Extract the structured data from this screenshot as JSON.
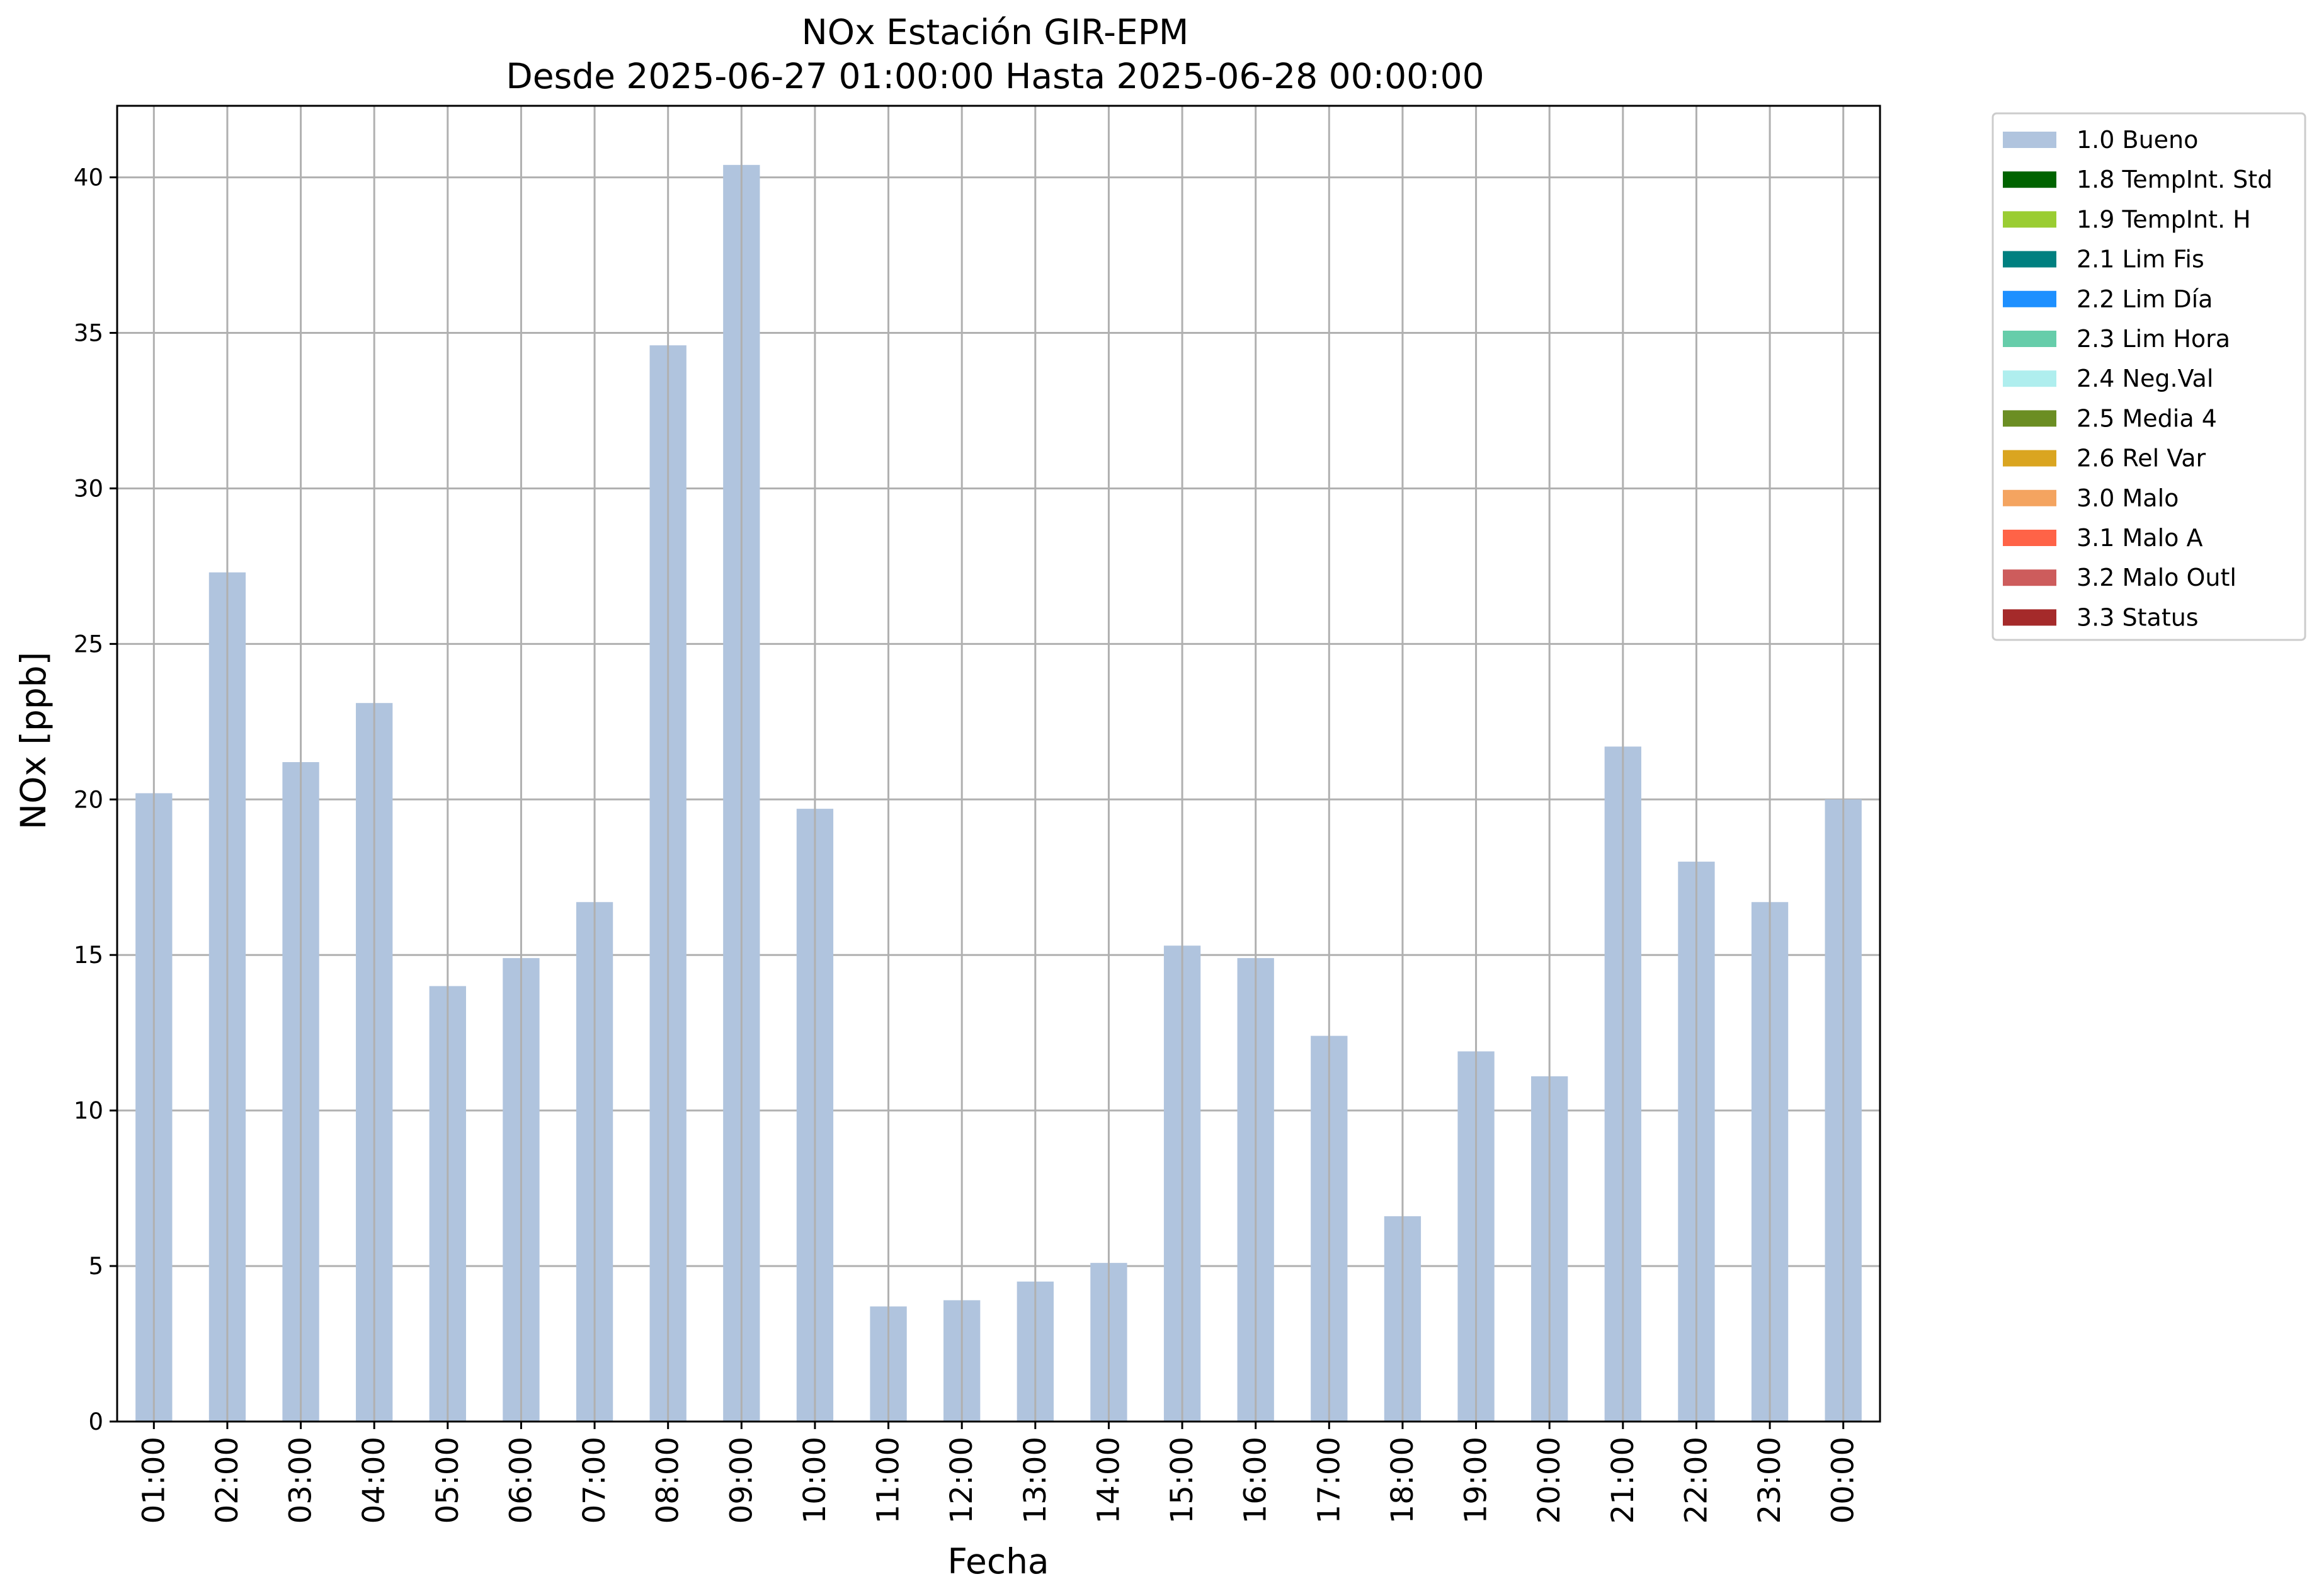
{
  "chart_data": {
    "type": "bar",
    "title": "NOx Estación GIR-EPM",
    "subtitle": "Desde 2025-06-27 01:00:00 Hasta 2025-06-28 00:00:00",
    "xlabel": "Fecha",
    "ylabel": "NOx [ppb]",
    "ylim": [
      0,
      42.3
    ],
    "yticks": [
      0,
      5,
      10,
      15,
      20,
      25,
      30,
      35,
      40
    ],
    "grid": true,
    "legend_position": "outside-top-right",
    "categories": [
      "01:00",
      "02:00",
      "03:00",
      "04:00",
      "05:00",
      "06:00",
      "07:00",
      "08:00",
      "09:00",
      "10:00",
      "11:00",
      "12:00",
      "13:00",
      "14:00",
      "15:00",
      "16:00",
      "17:00",
      "18:00",
      "19:00",
      "20:00",
      "21:00",
      "22:00",
      "23:00",
      "00:00"
    ],
    "series": [
      {
        "name": "1.0 Bueno",
        "color": "#b0c4de",
        "values": [
          20.2,
          27.3,
          21.2,
          23.1,
          14.0,
          14.9,
          16.7,
          34.6,
          40.4,
          19.7,
          3.7,
          3.9,
          4.5,
          5.1,
          15.3,
          14.9,
          12.4,
          6.6,
          11.9,
          11.1,
          21.7,
          18.0,
          16.7,
          20.0
        ]
      }
    ],
    "legend": [
      {
        "label": "1.0 Bueno",
        "color": "#b0c4de"
      },
      {
        "label": "1.8 TempInt. Std",
        "color": "#006400"
      },
      {
        "label": "1.9 TempInt. H",
        "color": "#9acd32"
      },
      {
        "label": "2.1 Lim Fis",
        "color": "#008080"
      },
      {
        "label": "2.2 Lim Día",
        "color": "#1e90ff"
      },
      {
        "label": "2.3 Lim Hora",
        "color": "#66cdaa"
      },
      {
        "label": "2.4 Neg.Val",
        "color": "#afeeee"
      },
      {
        "label": "2.5 Media 4",
        "color": "#6b8e23"
      },
      {
        "label": "2.6 Rel Var",
        "color": "#daa520"
      },
      {
        "label": "3.0 Malo",
        "color": "#f4a460"
      },
      {
        "label": "3.1 Malo A",
        "color": "#ff6347"
      },
      {
        "label": "3.2 Malo Outl",
        "color": "#cd5c5c"
      },
      {
        "label": "3.3 Status",
        "color": "#a52a2a"
      }
    ]
  }
}
